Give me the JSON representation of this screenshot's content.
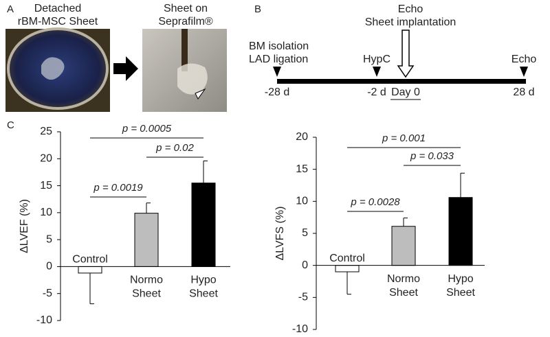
{
  "panel_a": {
    "label": "A",
    "left_caption": [
      "Detached",
      "rBM-MSC Sheet"
    ],
    "right_caption": [
      "Sheet on",
      "Seprafilm®"
    ]
  },
  "panel_b": {
    "label": "B",
    "events": [
      {
        "lines": [
          "BM isolation",
          "LAD ligation"
        ],
        "time": "-28 d"
      },
      {
        "lines": [
          "HypC"
        ],
        "time": "-2 d"
      },
      {
        "lines": [
          "Echo",
          "Sheet implantation"
        ],
        "time": "Day 0"
      },
      {
        "lines": [
          "Echo"
        ],
        "time": "28 d"
      }
    ]
  },
  "panel_c": {
    "label": "C"
  },
  "chart_data": [
    {
      "type": "bar",
      "ylabel": "ΔLVEF (%)",
      "categories": [
        [
          "Control"
        ],
        [
          "Normo",
          "Sheet"
        ],
        [
          "Hypo",
          "Sheet"
        ]
      ],
      "values": [
        -1.2,
        9.9,
        15.5
      ],
      "errors": [
        5.7,
        1.9,
        4.1
      ],
      "colors": [
        "#ffffff",
        "#bdbdbd",
        "#000000"
      ],
      "ylim": [
        -10,
        25
      ],
      "yticks": [
        -10,
        -5,
        0,
        5,
        10,
        15,
        20,
        25
      ],
      "annotations": [
        {
          "text": "p = 0.0019",
          "from": 0,
          "to": 1
        },
        {
          "text": "p = 0.02",
          "from": 1,
          "to": 2
        },
        {
          "text": "p = 0.0005",
          "from": 0,
          "to": 2
        }
      ]
    },
    {
      "type": "bar",
      "ylabel": "ΔLVFS (%)",
      "categories": [
        [
          "Control"
        ],
        [
          "Normo",
          "Sheet"
        ],
        [
          "Hypo",
          "Sheet"
        ]
      ],
      "values": [
        -1.0,
        6.1,
        10.6
      ],
      "errors": [
        3.5,
        1.3,
        3.8
      ],
      "colors": [
        "#ffffff",
        "#bdbdbd",
        "#000000"
      ],
      "ylim": [
        -10,
        20
      ],
      "yticks": [
        -10,
        -5,
        0,
        5,
        10,
        15,
        20
      ],
      "annotations": [
        {
          "text": "p = 0.0028",
          "from": 0,
          "to": 1
        },
        {
          "text": "p = 0.033",
          "from": 1,
          "to": 2
        },
        {
          "text": "p = 0.001",
          "from": 0,
          "to": 2
        }
      ]
    }
  ]
}
